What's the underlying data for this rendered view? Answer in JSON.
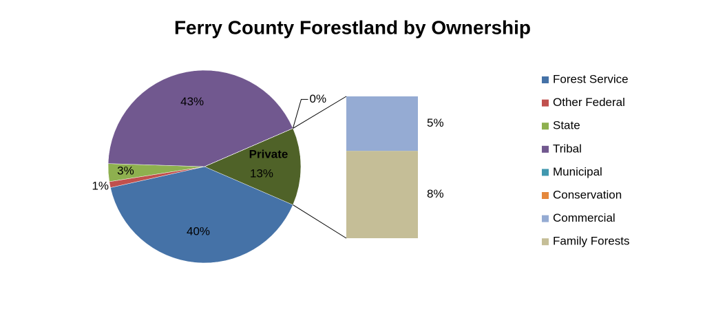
{
  "chart_data": {
    "type": "pie-of-bar",
    "title": "Ferry County Forestland by Ownership",
    "categories": [
      "Forest Service",
      "Other Federal",
      "State",
      "Tribal",
      "Municipal",
      "Conservation",
      "Commercial",
      "Family Forests"
    ],
    "values": [
      40,
      1,
      3,
      43,
      0,
      0,
      5,
      8
    ],
    "value_labels": [
      "40%",
      "1%",
      "3%",
      "43%",
      "0%",
      null,
      "5%",
      "8%"
    ],
    "colors": [
      "#4572a7",
      "#c0504d",
      "#8eb04f",
      "#71588f",
      "#4198af",
      "#e5883c",
      "#95abd3",
      "#c5be97"
    ],
    "group": {
      "label": "Private",
      "value": 13,
      "value_label": "13%",
      "color": "#4f6228"
    },
    "legend": "right"
  }
}
